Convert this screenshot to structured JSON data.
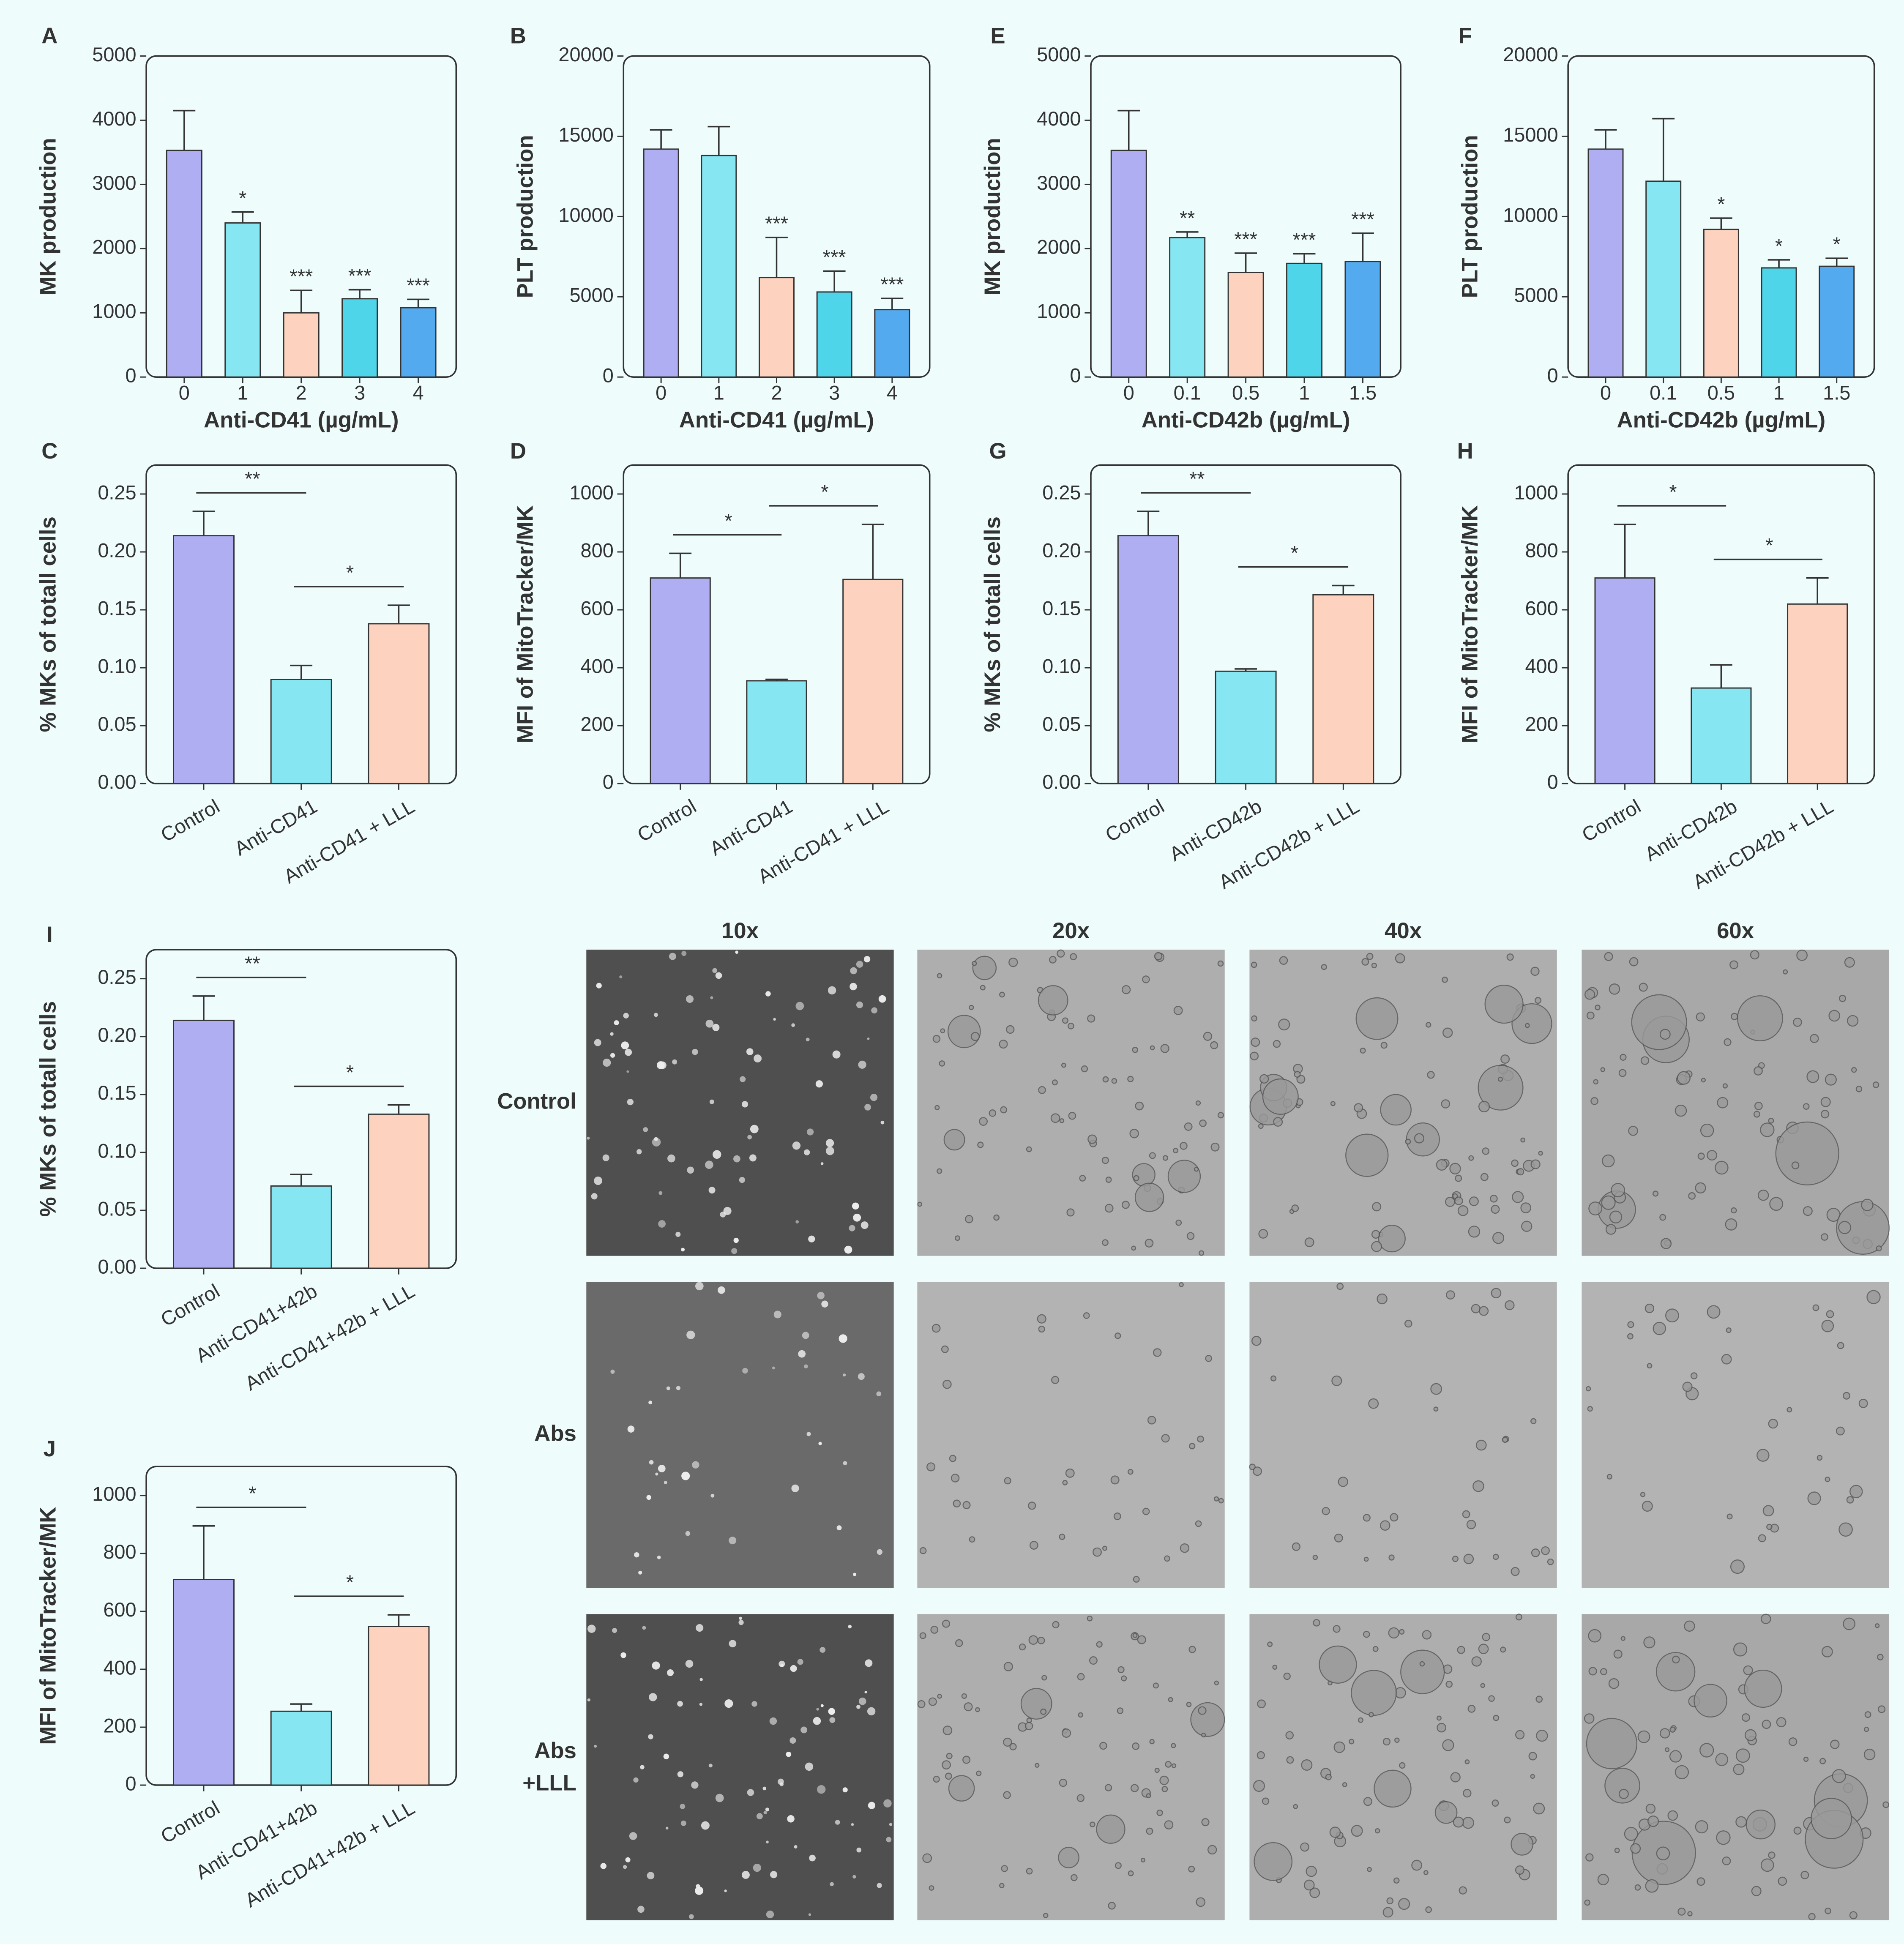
{
  "chart_data": [
    {
      "type": "bar",
      "panel": "A",
      "categories": [
        "0",
        "1",
        "2",
        "3",
        "4"
      ],
      "values": [
        3530,
        2400,
        1000,
        1220,
        1080
      ],
      "errors": [
        620,
        170,
        350,
        140,
        130
      ],
      "annotations": [
        null,
        "*",
        "***",
        "***",
        "***"
      ],
      "colors": [
        "#b0aef2",
        "#86e6f2",
        "#fdd3c0",
        "#4fd5ea",
        "#54aaee"
      ],
      "xlabel": "Anti-CD41 (µg/mL)",
      "ylabel": "MK production",
      "ylim": [
        0,
        5000
      ],
      "yticks": [
        0,
        1000,
        2000,
        3000,
        4000,
        5000
      ]
    },
    {
      "type": "bar",
      "panel": "B",
      "categories": [
        "0",
        "1",
        "2",
        "3",
        "4"
      ],
      "values": [
        14200,
        13800,
        6200,
        5300,
        4200
      ],
      "errors": [
        1200,
        1800,
        2500,
        1300,
        700
      ],
      "annotations": [
        null,
        null,
        "***",
        "***",
        "***"
      ],
      "colors": [
        "#b0aef2",
        "#86e6f2",
        "#fdd3c0",
        "#4fd5ea",
        "#54aaee"
      ],
      "xlabel": "Anti-CD41 (µg/mL)",
      "ylabel": "PLT production",
      "ylim": [
        0,
        20000
      ],
      "yticks": [
        0,
        5000,
        10000,
        15000,
        20000
      ]
    },
    {
      "type": "bar",
      "panel": "E",
      "categories": [
        "0",
        "0.1",
        "0.5",
        "1",
        "1.5"
      ],
      "values": [
        3530,
        2170,
        1630,
        1770,
        1800
      ],
      "errors": [
        620,
        90,
        300,
        150,
        440
      ],
      "annotations": [
        null,
        "**",
        "***",
        "***",
        "***"
      ],
      "colors": [
        "#b0aef2",
        "#86e6f2",
        "#fdd3c0",
        "#4fd5ea",
        "#54aaee"
      ],
      "xlabel": "Anti-CD42b (µg/mL)",
      "ylabel": "MK production",
      "ylim": [
        0,
        5000
      ],
      "yticks": [
        0,
        1000,
        2000,
        3000,
        4000,
        5000
      ]
    },
    {
      "type": "bar",
      "panel": "F",
      "categories": [
        "0",
        "0.1",
        "0.5",
        "1",
        "1.5"
      ],
      "values": [
        14200,
        12200,
        9200,
        6800,
        6900
      ],
      "errors": [
        1200,
        3900,
        700,
        500,
        500
      ],
      "annotations": [
        null,
        null,
        "*",
        "*",
        "*"
      ],
      "colors": [
        "#b0aef2",
        "#86e6f2",
        "#fdd3c0",
        "#4fd5ea",
        "#54aaee"
      ],
      "xlabel": "Anti-CD42b (µg/mL)",
      "ylabel": "PLT production",
      "ylim": [
        0,
        20000
      ],
      "yticks": [
        0,
        5000,
        10000,
        15000,
        20000
      ]
    },
    {
      "type": "bar",
      "panel": "C",
      "categories": [
        "Control",
        "Anti-CD41",
        "Anti-CD41 + LLL"
      ],
      "values": [
        0.214,
        0.09,
        0.138
      ],
      "errors": [
        0.021,
        0.012,
        0.016
      ],
      "comparisons": [
        {
          "pair": [
            "Control",
            "Anti-CD41"
          ],
          "label": "**"
        },
        {
          "pair": [
            "Anti-CD41",
            "Anti-CD41 + LLL"
          ],
          "label": "*"
        }
      ],
      "colors": [
        "#b0aef2",
        "#86e6f2",
        "#fdd3c0"
      ],
      "ylabel": "% MKs of totall cells",
      "ylim": [
        0,
        0.275
      ],
      "yticks": [
        {
          "value": 0,
          "label": "0.00"
        },
        {
          "value": 0.05,
          "label": "0.05"
        },
        {
          "value": 0.1,
          "label": "0.10"
        },
        {
          "value": 0.15,
          "label": "0.15"
        },
        {
          "value": 0.2,
          "label": "0.20"
        },
        {
          "value": 0.25,
          "label": "0.25"
        }
      ]
    },
    {
      "type": "bar",
      "panel": "D",
      "categories": [
        "Control",
        "Anti-CD41",
        "Anti-CD41 + LLL"
      ],
      "values": [
        710,
        355,
        705
      ],
      "errors": [
        85,
        5,
        190
      ],
      "comparisons": [
        {
          "pair": [
            "Control",
            "Anti-CD41"
          ],
          "label": "*"
        },
        {
          "pair": [
            "Anti-CD41",
            "Anti-CD41 + LLL"
          ],
          "label": "*"
        }
      ],
      "colors": [
        "#b0aef2",
        "#86e6f2",
        "#fdd3c0"
      ],
      "ylabel": "MFI of MitoTracker/MK",
      "ylim": [
        0,
        1100
      ],
      "yticks": [
        0,
        200,
        400,
        600,
        800,
        1000
      ]
    },
    {
      "type": "bar",
      "panel": "G",
      "categories": [
        "Control",
        "Anti-CD42b",
        "Anti-CD42b + LLL"
      ],
      "values": [
        0.214,
        0.097,
        0.163
      ],
      "errors": [
        0.021,
        0.002,
        0.008
      ],
      "comparisons": [
        {
          "pair": [
            "Control",
            "Anti-CD42b"
          ],
          "label": "**"
        },
        {
          "pair": [
            "Anti-CD42b",
            "Anti-CD42b + LLL"
          ],
          "label": "*"
        }
      ],
      "colors": [
        "#b0aef2",
        "#86e6f2",
        "#fdd3c0"
      ],
      "ylabel": "% MKs of totall cells",
      "ylim": [
        0,
        0.275
      ],
      "yticks": [
        {
          "value": 0,
          "label": "0.00"
        },
        {
          "value": 0.05,
          "label": "0.05"
        },
        {
          "value": 0.1,
          "label": "0.10"
        },
        {
          "value": 0.15,
          "label": "0.15"
        },
        {
          "value": 0.2,
          "label": "0.20"
        },
        {
          "value": 0.25,
          "label": "0.25"
        }
      ]
    },
    {
      "type": "bar",
      "panel": "H",
      "categories": [
        "Control",
        "Anti-CD42b",
        "Anti-CD42b + LLL"
      ],
      "values": [
        710,
        330,
        620
      ],
      "errors": [
        185,
        80,
        90
      ],
      "comparisons": [
        {
          "pair": [
            "Control",
            "Anti-CD42b"
          ],
          "label": "*"
        },
        {
          "pair": [
            "Anti-CD42b",
            "Anti-CD42b + LLL"
          ],
          "label": "*"
        }
      ],
      "colors": [
        "#b0aef2",
        "#86e6f2",
        "#fdd3c0"
      ],
      "ylabel": "MFI of MitoTracker/MK",
      "ylim": [
        0,
        1100
      ],
      "yticks": [
        0,
        200,
        400,
        600,
        800,
        1000
      ]
    },
    {
      "type": "bar",
      "panel": "I",
      "categories": [
        "Control",
        "Anti-CD41+42b",
        "Anti-CD41+42b + LLL"
      ],
      "values": [
        0.214,
        0.071,
        0.133
      ],
      "errors": [
        0.021,
        0.01,
        0.008
      ],
      "comparisons": [
        {
          "pair": [
            "Control",
            "Anti-CD41+42b"
          ],
          "label": "**"
        },
        {
          "pair": [
            "Anti-CD41+42b",
            "Anti-CD41+42b + LLL"
          ],
          "label": "*"
        }
      ],
      "colors": [
        "#b0aef2",
        "#86e6f2",
        "#fdd3c0"
      ],
      "ylabel": "% MKs of totall cells",
      "ylim": [
        0,
        0.275
      ],
      "yticks": [
        {
          "value": 0,
          "label": "0.00"
        },
        {
          "value": 0.05,
          "label": "0.05"
        },
        {
          "value": 0.1,
          "label": "0.10"
        },
        {
          "value": 0.15,
          "label": "0.15"
        },
        {
          "value": 0.2,
          "label": "0.20"
        },
        {
          "value": 0.25,
          "label": "0.25"
        }
      ]
    },
    {
      "type": "bar",
      "panel": "J",
      "categories": [
        "Control",
        "Anti-CD41+42b",
        "Anti-CD41+42b + LLL"
      ],
      "values": [
        710,
        255,
        548
      ],
      "errors": [
        185,
        25,
        40
      ],
      "comparisons": [
        {
          "pair": [
            "Control",
            "Anti-CD41+42b"
          ],
          "label": "*"
        },
        {
          "pair": [
            "Anti-CD41+42b",
            "Anti-CD41+42b + LLL"
          ],
          "label": "*"
        }
      ],
      "colors": [
        "#b0aef2",
        "#86e6f2",
        "#fdd3c0"
      ],
      "ylabel": "MFI of MitoTracker/MK",
      "ylim": [
        0,
        1100
      ],
      "yticks": [
        0,
        200,
        400,
        600,
        800,
        1000
      ]
    }
  ],
  "image_grid": {
    "columns": [
      "10x",
      "20x",
      "40x",
      "60x"
    ],
    "rows": [
      [
        "Control"
      ],
      [
        "Abs"
      ],
      [
        "Abs",
        "+LLL"
      ]
    ]
  }
}
